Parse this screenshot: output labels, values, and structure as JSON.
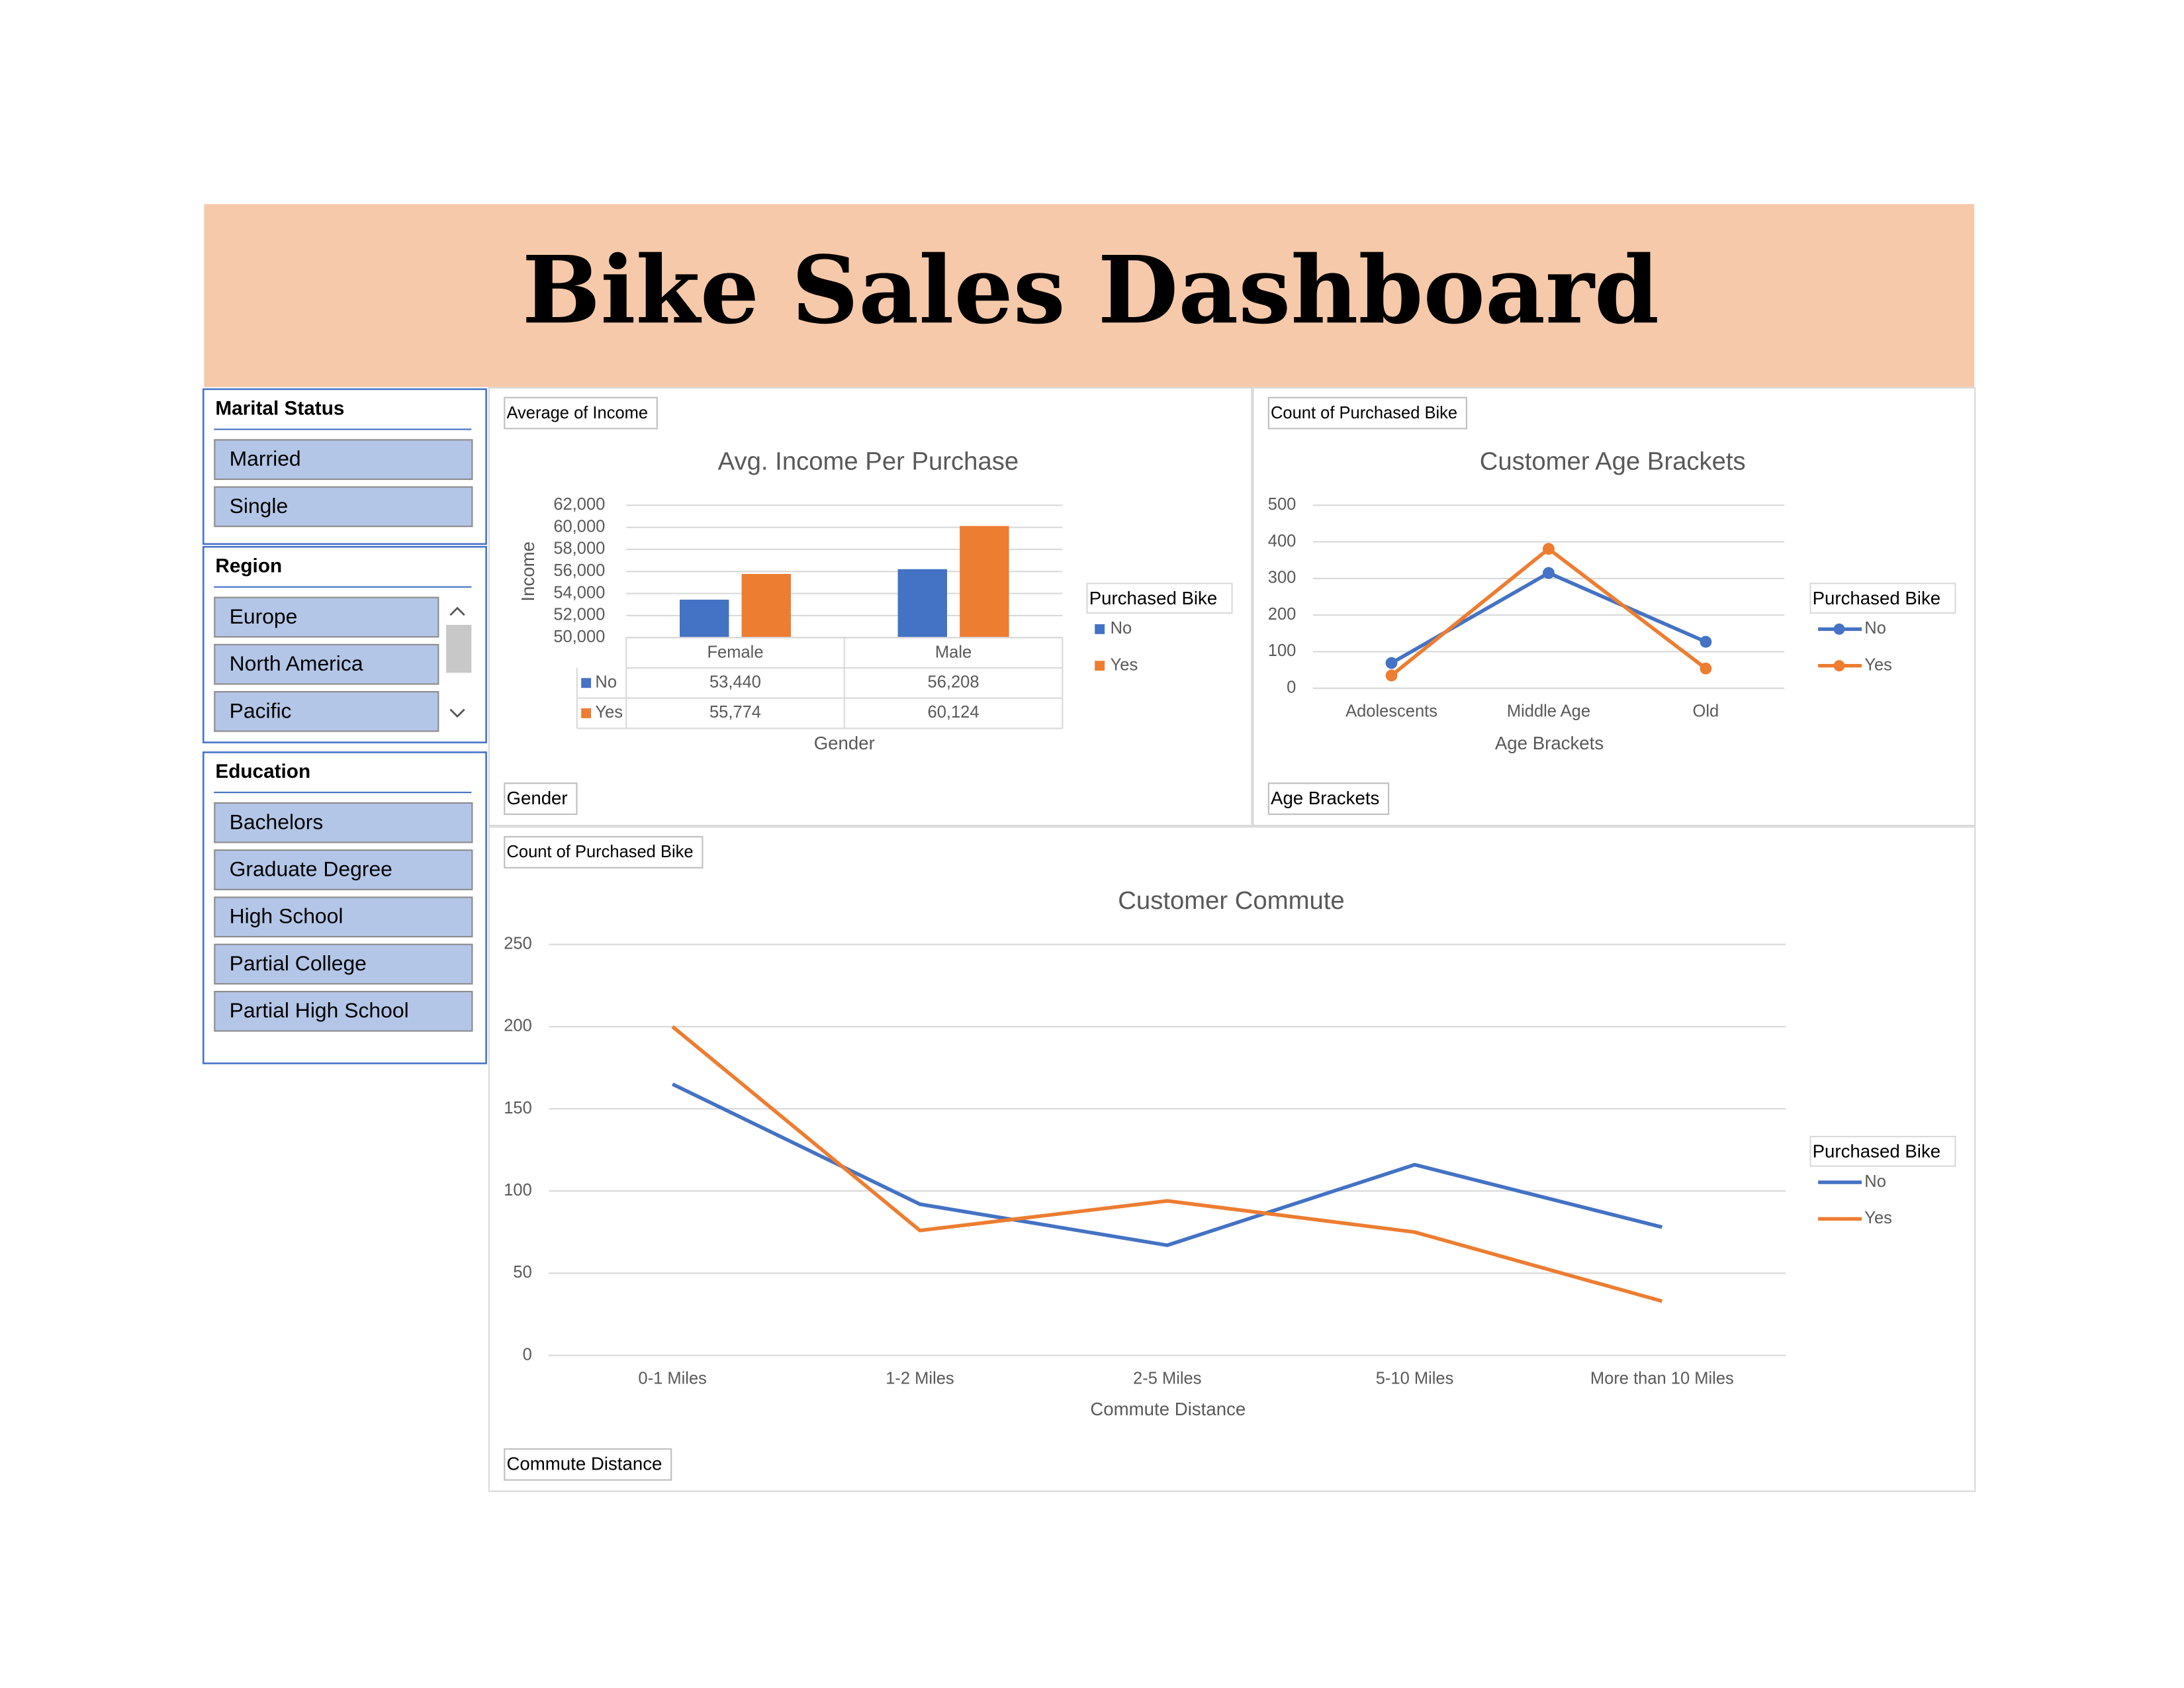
{
  "header": {
    "title": "Bike Sales Dashboard"
  },
  "slicers": [
    {
      "title": "Marital Status",
      "items": [
        "Married",
        "Single"
      ]
    },
    {
      "title": "Region",
      "items": [
        "Europe",
        "North America",
        "Pacific"
      ]
    },
    {
      "title": "Education",
      "items": [
        "Bachelors",
        "Graduate Degree",
        "High School",
        "Partial College",
        "Partial High School"
      ]
    }
  ],
  "chart_data": [
    {
      "type": "bar",
      "title": "Avg. Income Per Purchase",
      "value_field": "Average of Income",
      "axis_field": "Gender",
      "y_label": "Income",
      "x_label": "Gender",
      "legend_title": "Purchased Bike",
      "categories": [
        "Female",
        "Male"
      ],
      "series": [
        {
          "name": "No",
          "color": "#4472c4",
          "values": [
            53440,
            56208
          ],
          "value_labels": [
            "53,440",
            "56,208"
          ]
        },
        {
          "name": "Yes",
          "color": "#ed7d31",
          "values": [
            55774,
            60124
          ],
          "value_labels": [
            "55,774",
            "60,124"
          ]
        }
      ],
      "ylim": [
        50000,
        62000
      ],
      "yticks": [
        {
          "value": 50000,
          "label": "50,000"
        },
        {
          "value": 52000,
          "label": "52,000"
        },
        {
          "value": 54000,
          "label": "54,000"
        },
        {
          "value": 56000,
          "label": "56,000"
        },
        {
          "value": 58000,
          "label": "58,000"
        },
        {
          "value": 60000,
          "label": "60,000"
        },
        {
          "value": 62000,
          "label": "62,000"
        }
      ],
      "grid": true,
      "legend": "right"
    },
    {
      "type": "line",
      "title": "Customer Age Brackets",
      "value_field": "Count of Purchased Bike",
      "axis_field": "Age Brackets",
      "x_label": "Age Brackets",
      "legend_title": "Purchased Bike",
      "categories": [
        "Adolescents",
        "Middle Age",
        "Old"
      ],
      "series": [
        {
          "name": "No",
          "color": "#4472c4",
          "values": [
            69,
            315,
            127
          ]
        },
        {
          "name": "Yes",
          "color": "#ed7d31",
          "values": [
            35,
            381,
            54
          ]
        }
      ],
      "ylim": [
        0,
        500
      ],
      "yticks": [
        0,
        100,
        200,
        300,
        400,
        500
      ],
      "grid": true,
      "markers": true,
      "legend": "right"
    },
    {
      "type": "line",
      "title": "Customer Commute",
      "value_field": "Count of Purchased Bike",
      "axis_field": "Commute Distance",
      "x_label": "Commute Distance",
      "legend_title": "Purchased Bike",
      "categories": [
        "0-1 Miles",
        "1-2 Miles",
        "2-5 Miles",
        "5-10 Miles",
        "More than 10 Miles"
      ],
      "series": [
        {
          "name": "No",
          "color": "#4472c4",
          "values": [
            165,
            92,
            67,
            116,
            78
          ]
        },
        {
          "name": "Yes",
          "color": "#ed7d31",
          "values": [
            200,
            76,
            94,
            75,
            33
          ]
        }
      ],
      "ylim": [
        0,
        250
      ],
      "yticks": [
        0,
        50,
        100,
        150,
        200,
        250
      ],
      "grid": true,
      "markers": false,
      "legend": "right"
    }
  ]
}
